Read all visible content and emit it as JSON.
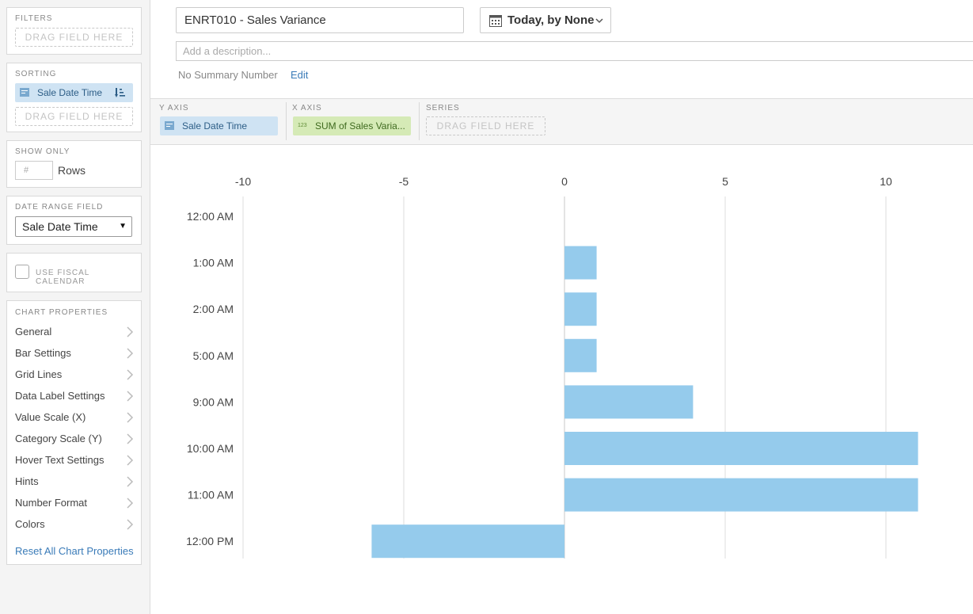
{
  "sidebar": {
    "filters": {
      "title": "FILTERS",
      "drag_label": "DRAG FIELD HERE"
    },
    "sorting": {
      "title": "SORTING",
      "field": "Sale Date Time",
      "drag_label": "DRAG FIELD HERE"
    },
    "show_only": {
      "title": "SHOW ONLY",
      "placeholder": "#",
      "rows_label": "Rows"
    },
    "date_range": {
      "title": "DATE RANGE FIELD",
      "selected": "Sale Date Time"
    },
    "fiscal": {
      "label": "USE FISCAL CALENDAR",
      "checked": false
    },
    "chart_properties": {
      "title": "CHART PROPERTIES",
      "items": [
        "General",
        "Bar Settings",
        "Grid Lines",
        "Data Label Settings",
        "Value Scale (X)",
        "Category Scale (Y)",
        "Hover Text Settings",
        "Hints",
        "Number Format",
        "Colors"
      ],
      "reset_label": "Reset All Chart Properties"
    }
  },
  "header": {
    "title": "ENRT010 - Sales Variance",
    "date_filter": "Today, by None",
    "description_placeholder": "Add a description...",
    "summary_text": "No Summary Number",
    "edit_label": "Edit"
  },
  "axes": {
    "y_axis": {
      "label": "Y AXIS",
      "field": "Sale Date Time"
    },
    "x_axis": {
      "label": "X AXIS",
      "field": "SUM of Sales Varia..."
    },
    "series": {
      "label": "SERIES",
      "drag_label": "DRAG FIELD HERE"
    }
  },
  "colors": {
    "bar": "#95cbec",
    "accent_link": "#3a7bb8",
    "pill_blue": "#cfe3f3",
    "pill_green": "#d5eab6"
  },
  "chart_data": {
    "type": "bar",
    "orientation": "horizontal",
    "categories": [
      "12:00 AM",
      "1:00 AM",
      "2:00 AM",
      "5:00 AM",
      "9:00 AM",
      "10:00 AM",
      "11:00 AM",
      "12:00 PM"
    ],
    "values": [
      0,
      1,
      1,
      1,
      4,
      11,
      11,
      -6
    ],
    "xlim": [
      -10,
      10
    ],
    "xticks": [
      -10,
      -5,
      0,
      5,
      10
    ],
    "xtick_labels": [
      "-10",
      "-5",
      "0",
      "5",
      "10"
    ],
    "grid": true
  }
}
